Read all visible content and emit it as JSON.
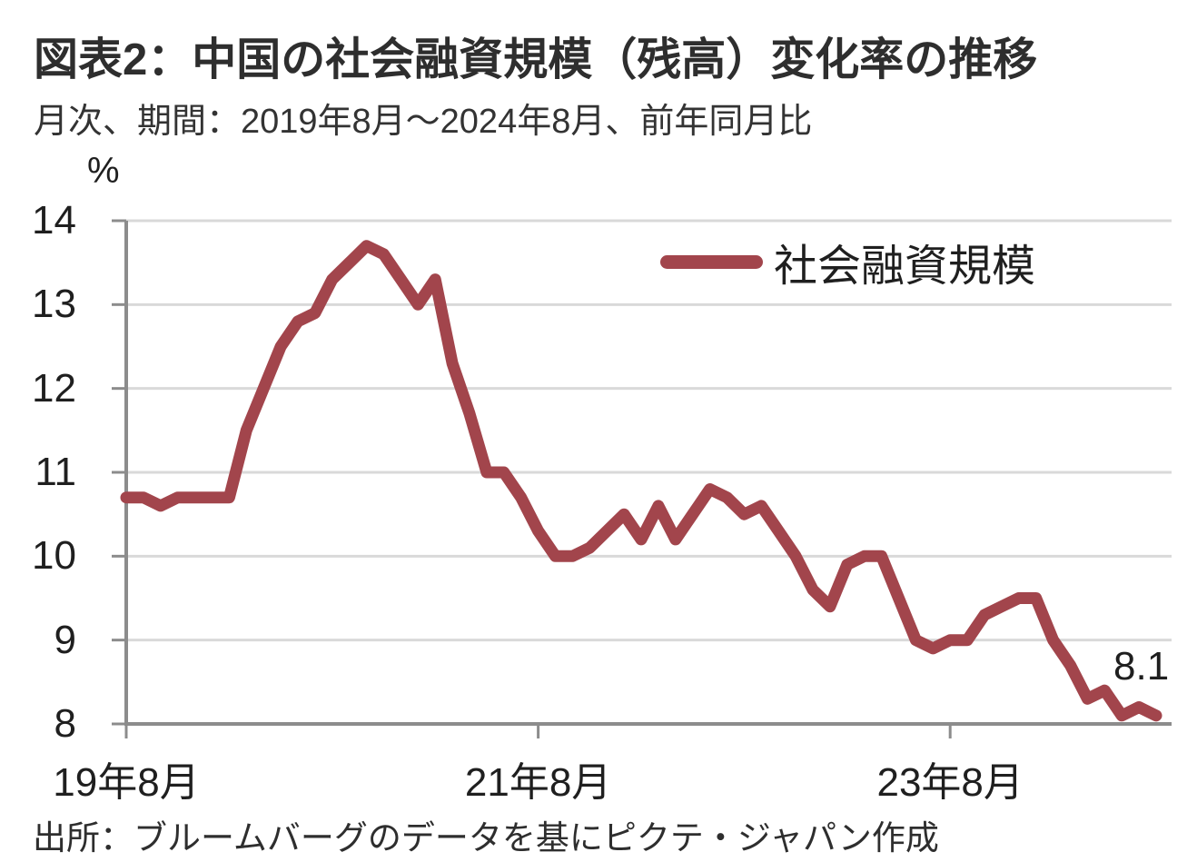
{
  "header": {
    "title": "図表2：中国の社会融資規模（残高）変化率の推移",
    "subtitle": "月次、期間：2019年8月～2024年8月、前年同月比"
  },
  "footer": {
    "source": "出所：ブルームバーグのデータを基にピクテ・ジャパン作成"
  },
  "colors": {
    "line": "#A2454C",
    "grid": "#D9D9D9",
    "axis": "#8C8C8C",
    "text": "#1f1f1f"
  },
  "chart_data": {
    "type": "line",
    "title": "図表2：中国の社会融資規模（残高）変化率の推移",
    "unit_label": "%",
    "ylabel": "%",
    "xlabel": "",
    "ylim": [
      8,
      14
    ],
    "y_ticks": [
      14,
      13,
      12,
      11,
      10,
      9,
      8
    ],
    "x_tick_labels": [
      "19年8月",
      "21年8月",
      "23年8月"
    ],
    "x_tick_indices": [
      0,
      24,
      48
    ],
    "grid": "horizontal",
    "legend_position": "inside-top-right",
    "end_label": "8.1",
    "x": [
      "2019-08",
      "2019-09",
      "2019-10",
      "2019-11",
      "2019-12",
      "2020-01",
      "2020-02",
      "2020-03",
      "2020-04",
      "2020-05",
      "2020-06",
      "2020-07",
      "2020-08",
      "2020-09",
      "2020-10",
      "2020-11",
      "2020-12",
      "2021-01",
      "2021-02",
      "2021-03",
      "2021-04",
      "2021-05",
      "2021-06",
      "2021-07",
      "2021-08",
      "2021-09",
      "2021-10",
      "2021-11",
      "2021-12",
      "2022-01",
      "2022-02",
      "2022-03",
      "2022-04",
      "2022-05",
      "2022-06",
      "2022-07",
      "2022-08",
      "2022-09",
      "2022-10",
      "2022-11",
      "2022-12",
      "2023-01",
      "2023-02",
      "2023-03",
      "2023-04",
      "2023-05",
      "2023-06",
      "2023-07",
      "2023-08",
      "2023-09",
      "2023-10",
      "2023-11",
      "2023-12",
      "2024-01",
      "2024-02",
      "2024-03",
      "2024-04",
      "2024-05",
      "2024-06",
      "2024-07",
      "2024-08"
    ],
    "series": [
      {
        "name": "社会融資規模",
        "color": "#A2454C",
        "values": [
          10.7,
          10.7,
          10.6,
          10.7,
          10.7,
          10.7,
          10.7,
          11.5,
          12.0,
          12.5,
          12.8,
          12.9,
          13.3,
          13.5,
          13.7,
          13.6,
          13.3,
          13.0,
          13.3,
          12.3,
          11.7,
          11.0,
          11.0,
          10.7,
          10.3,
          10.0,
          10.0,
          10.1,
          10.3,
          10.5,
          10.2,
          10.6,
          10.2,
          10.5,
          10.8,
          10.7,
          10.5,
          10.6,
          10.3,
          10.0,
          9.6,
          9.4,
          9.9,
          10.0,
          10.0,
          9.5,
          9.0,
          8.9,
          9.0,
          9.0,
          9.3,
          9.4,
          9.5,
          9.5,
          9.0,
          8.7,
          8.3,
          8.4,
          8.1,
          8.2,
          8.1
        ]
      }
    ]
  }
}
